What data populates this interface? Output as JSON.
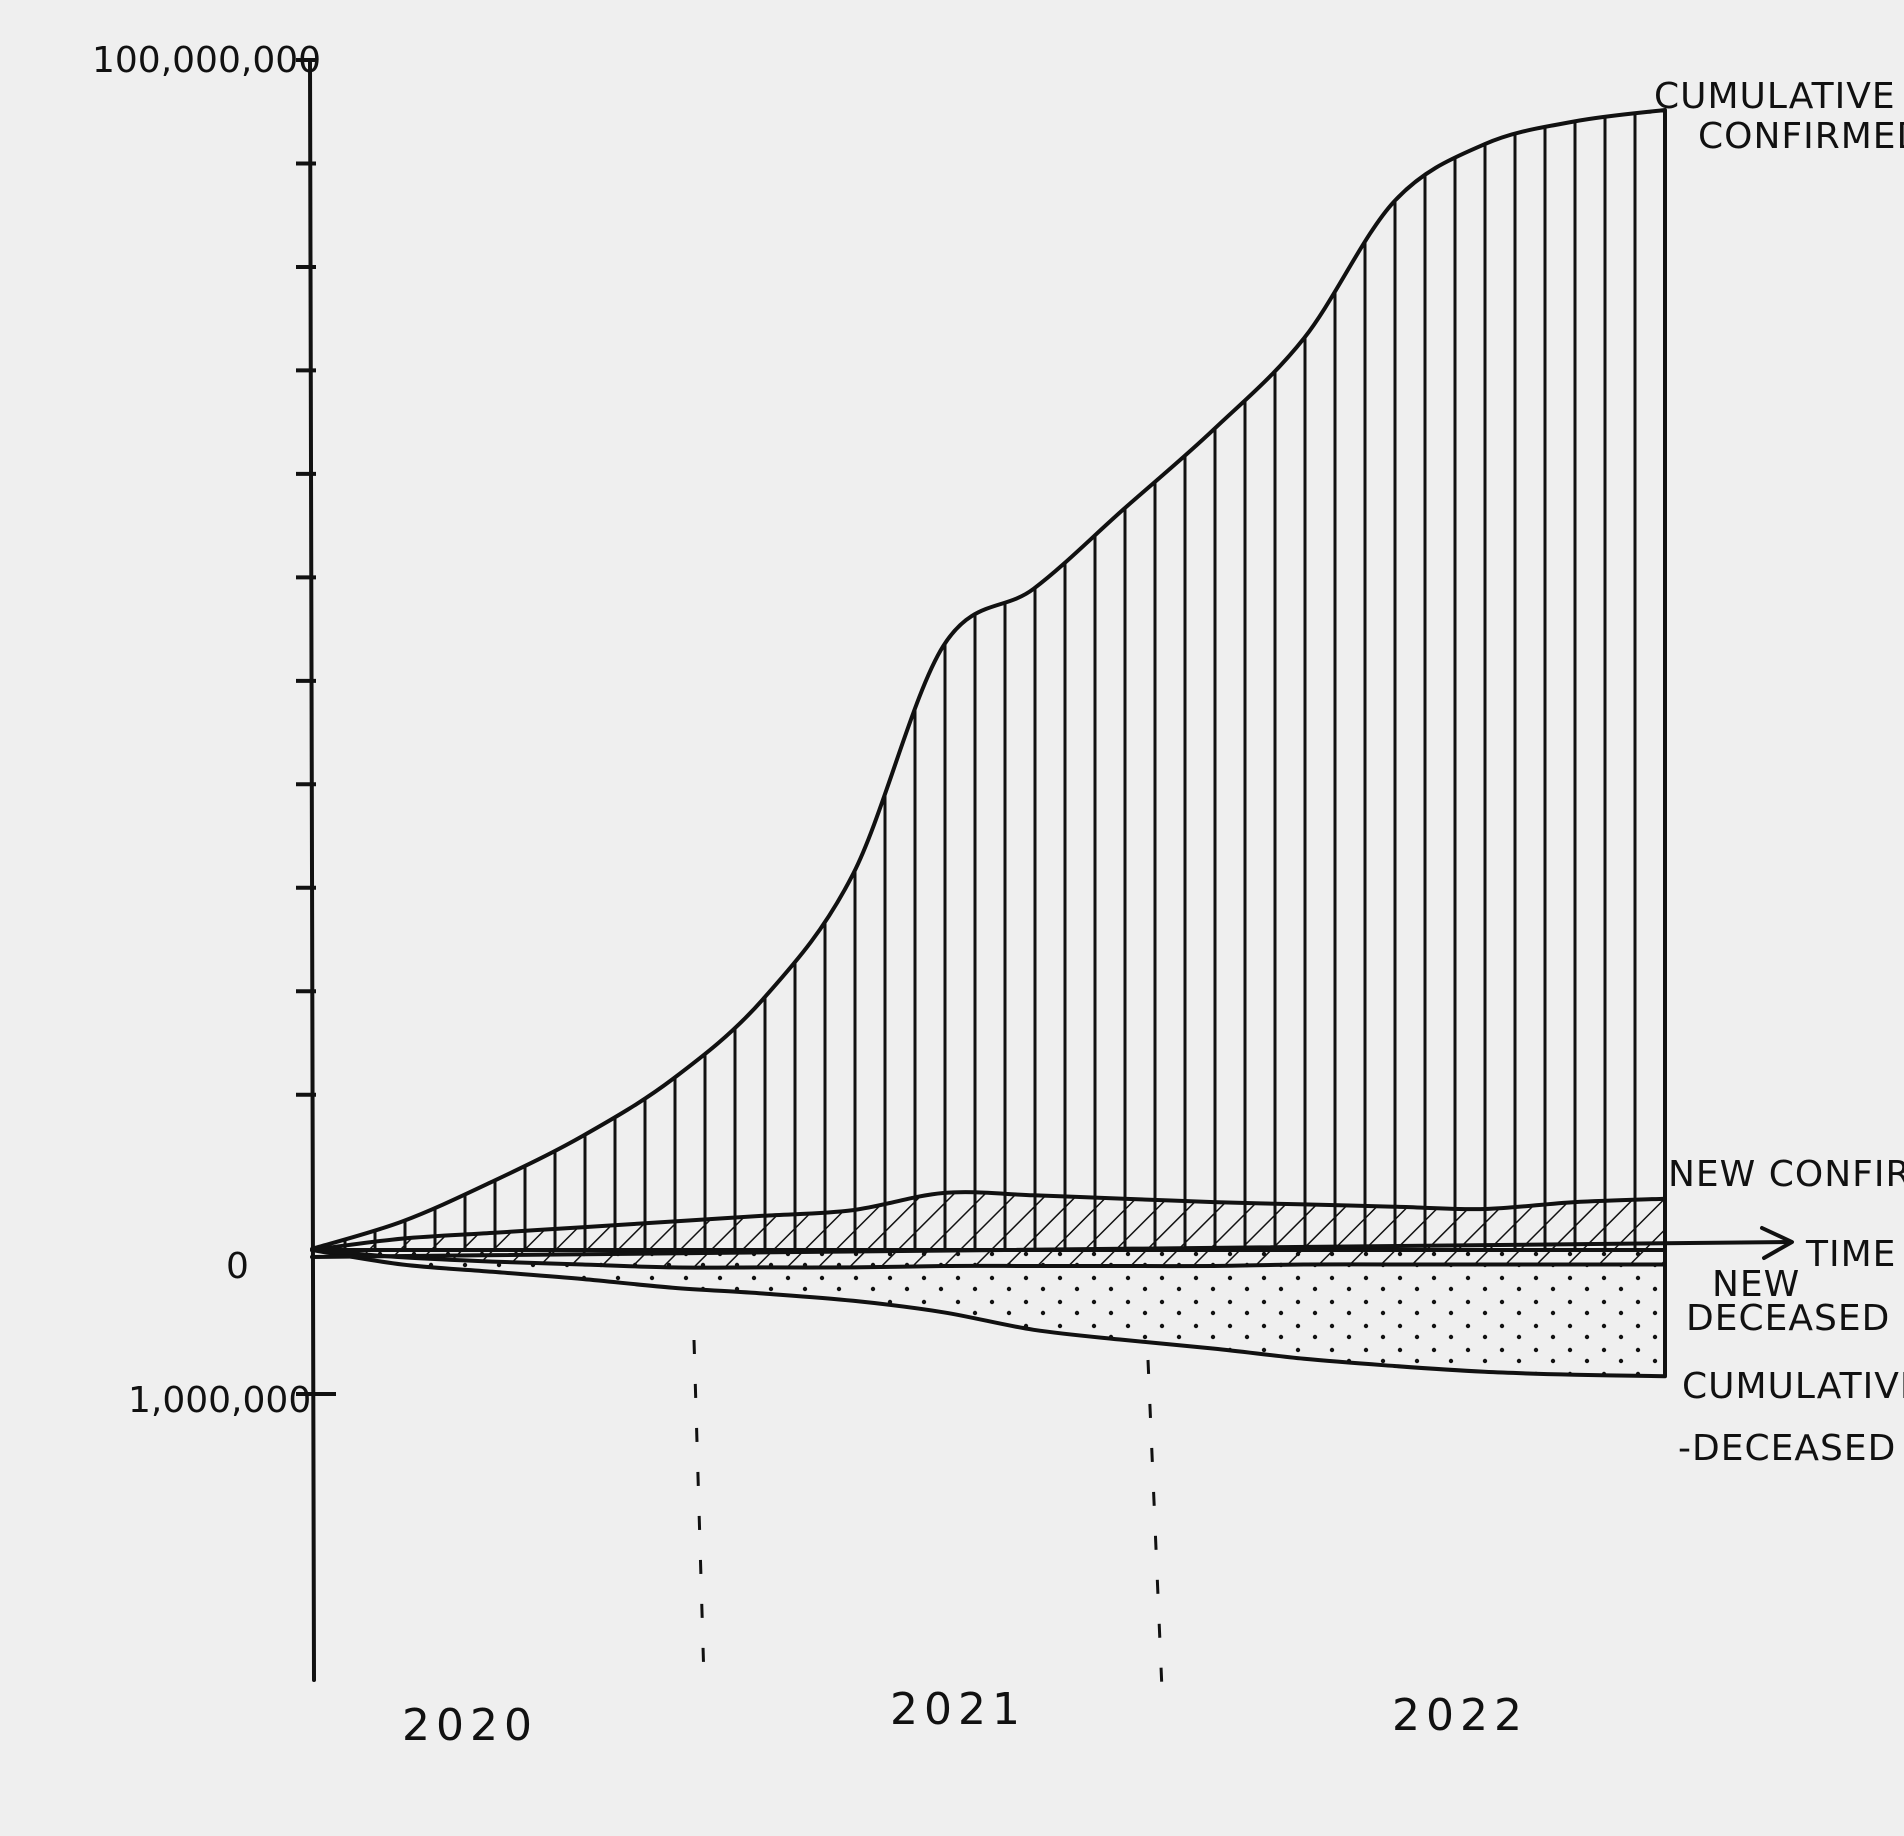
{
  "chart_data": {
    "type": "area",
    "medium": "hand-drawn sketch on paper",
    "title": "",
    "xlabel": "TIME",
    "ylabel": "",
    "y_tick_labels": {
      "top": "100,000,000",
      "zero": "0",
      "bottom": "1,000,000"
    },
    "y_axis_note": "diverging axis: confirmed cases plotted above 0, deaths plotted below 0 on a separate scale",
    "x_periods": [
      "2020",
      "2021",
      "2022"
    ],
    "period_boundaries": [
      2020.92,
      2021.92
    ],
    "x": [
      2020.0,
      2020.2,
      2020.4,
      2020.6,
      2020.8,
      2021.0,
      2021.2,
      2021.4,
      2021.6,
      2021.8,
      2022.0,
      2022.2,
      2022.4,
      2022.6,
      2022.8,
      2023.0
    ],
    "above_zero": [
      {
        "name": "CUMULATIVE CONFIRMED",
        "label_text": [
          "CUMULATIVE",
          "CONFIRMED"
        ],
        "pattern": "vertical-lines",
        "values": [
          0.1,
          2.5,
          6,
          10,
          15,
          22,
          33,
          53,
          58,
          65,
          72,
          80,
          92,
          97,
          99,
          100
        ]
      },
      {
        "name": "NEW CONFIRMED",
        "label_text": [
          "NEW CONFIRMED"
        ],
        "pattern": "diagonal-hatch",
        "values": [
          0,
          1,
          1.5,
          2,
          2.5,
          3,
          3.5,
          5,
          4.8,
          4.5,
          4.2,
          4,
          3.8,
          3.6,
          4.2,
          4.5
        ]
      }
    ],
    "below_zero": [
      {
        "name": "NEW DECEASED",
        "label_text": [
          "NEW",
          "DECEASED"
        ],
        "pattern": "diagonal-hatch",
        "values": [
          0,
          5,
          8,
          10,
          12,
          12,
          12,
          11,
          11,
          11,
          11,
          10,
          10,
          10,
          10,
          10
        ]
      },
      {
        "name": "CUMULATIVE DECEASED",
        "label_text": [
          "CUMULATIVE",
          "-DECEASED"
        ],
        "pattern": "dots",
        "values": [
          0,
          10,
          15,
          20,
          26,
          30,
          35,
          43,
          55,
          62,
          68,
          75,
          80,
          84,
          86,
          87
        ]
      }
    ],
    "ylim_above": [
      0,
      100
    ],
    "ylim_below": [
      0,
      100
    ],
    "legend": "labels placed at right end of each band",
    "grid": false
  }
}
